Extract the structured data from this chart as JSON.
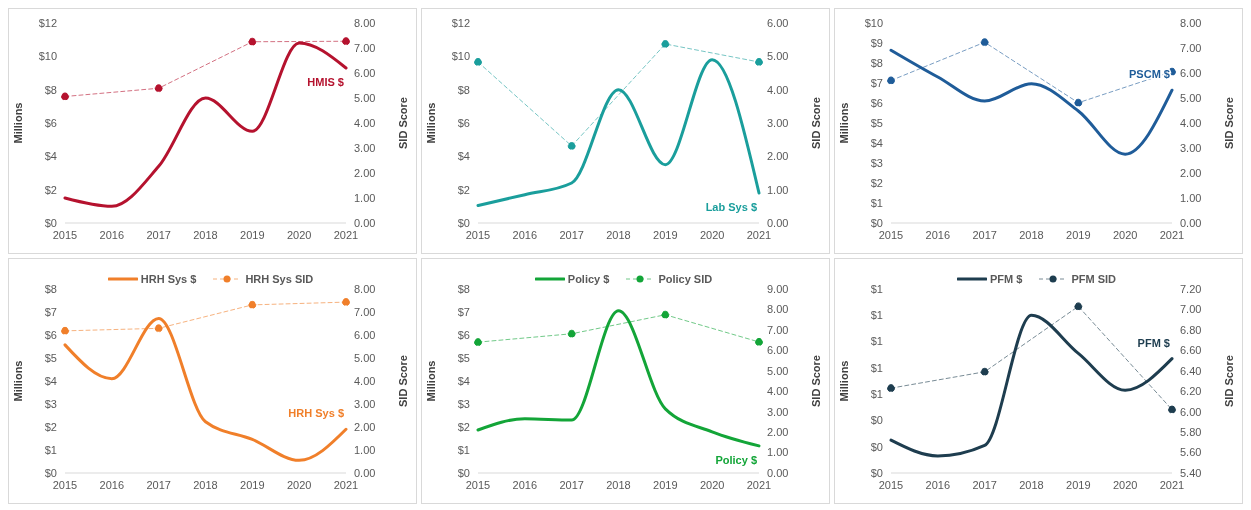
{
  "chart_data": [
    {
      "type": "line",
      "categories": [
        "2015",
        "2016",
        "2017",
        "2018",
        "2019",
        "2020",
        "2021"
      ],
      "ylabel": "Millions",
      "y2label": "SID Score",
      "legend": false,
      "series": [
        {
          "color": "#b5122e",
          "values": [
            1.5,
            1.0,
            3.4,
            7.5,
            5.5,
            10.8,
            9.3
          ],
          "line_style": "solid",
          "marker": "none"
        },
        {
          "color": "#b5122e",
          "values": [
            5.06,
            null,
            5.39,
            null,
            7.25,
            null,
            7.27
          ],
          "axis": "y2",
          "line_style": "dashed",
          "marker": "circle"
        }
      ],
      "ylim": [
        0,
        12
      ],
      "yticks": [
        {
          "value": 0,
          "label": "$0"
        },
        {
          "value": 2,
          "label": "$2"
        },
        {
          "value": 4,
          "label": "$4"
        },
        {
          "value": 6,
          "label": "$6"
        },
        {
          "value": 8,
          "label": "$8"
        },
        {
          "value": 10,
          "label": "$10"
        },
        {
          "value": 12,
          "label": "$12"
        }
      ],
      "y2lim": [
        0,
        8
      ],
      "y2ticks": [
        {
          "value": 0,
          "label": "0.00"
        },
        {
          "value": 1,
          "label": "1.00"
        },
        {
          "value": 2,
          "label": "2.00"
        },
        {
          "value": 3,
          "label": "3.00"
        },
        {
          "value": 4,
          "label": "4.00"
        },
        {
          "value": 5,
          "label": "5.00"
        },
        {
          "value": 6,
          "label": "6.00"
        },
        {
          "value": 7,
          "label": "7.00"
        },
        {
          "value": 8,
          "label": "8.00"
        }
      ],
      "annotations": [
        {
          "text": "HMIS $",
          "x": "2021",
          "y": 9.3
        }
      ]
    },
    {
      "type": "line",
      "categories": [
        "2015",
        "2016",
        "2017",
        "2018",
        "2019",
        "2020",
        "2021"
      ],
      "ylabel": "Millions",
      "y2label": "SID Score",
      "legend": false,
      "series": [
        {
          "color": "#1a9e9c",
          "values": [
            1.05,
            1.7,
            2.4,
            8.0,
            3.5,
            9.8,
            1.8
          ],
          "line_style": "solid",
          "marker": "none"
        },
        {
          "color": "#1a9e9c",
          "values": [
            4.83,
            null,
            2.31,
            null,
            5.37,
            null,
            4.83
          ],
          "axis": "y2",
          "line_style": "dashed",
          "marker": "circle"
        }
      ],
      "ylim": [
        0,
        12
      ],
      "yticks": [
        {
          "value": 0,
          "label": "$0"
        },
        {
          "value": 2,
          "label": "$2"
        },
        {
          "value": 4,
          "label": "$4"
        },
        {
          "value": 6,
          "label": "$6"
        },
        {
          "value": 8,
          "label": "$8"
        },
        {
          "value": 10,
          "label": "$10"
        },
        {
          "value": 12,
          "label": "$12"
        }
      ],
      "y2lim": [
        0,
        6
      ],
      "y2ticks": [
        {
          "value": 0,
          "label": "0.00"
        },
        {
          "value": 1,
          "label": "1.00"
        },
        {
          "value": 2,
          "label": "2.00"
        },
        {
          "value": 3,
          "label": "3.00"
        },
        {
          "value": 4,
          "label": "4.00"
        },
        {
          "value": 5,
          "label": "5.00"
        },
        {
          "value": 6,
          "label": "6.00"
        }
      ],
      "annotations": [
        {
          "text": "Lab Sys $",
          "x": "2021",
          "y": 1.8
        }
      ]
    },
    {
      "type": "line",
      "categories": [
        "2015",
        "2016",
        "2017",
        "2018",
        "2019",
        "2020",
        "2021"
      ],
      "ylabel": "Millions",
      "y2label": "SID Score",
      "legend": false,
      "series": [
        {
          "color": "#1f5c99",
          "values": [
            8.64,
            7.3,
            6.1,
            6.96,
            5.6,
            3.44,
            6.64
          ],
          "line_style": "solid",
          "marker": "none"
        },
        {
          "color": "#1f5c99",
          "values": [
            5.7,
            null,
            7.23,
            null,
            4.81,
            null,
            6.05
          ],
          "axis": "y2",
          "line_style": "dashed",
          "marker": "circle"
        }
      ],
      "ylim": [
        0,
        10
      ],
      "yticks": [
        {
          "value": 0,
          "label": "$0"
        },
        {
          "value": 1,
          "label": "$1"
        },
        {
          "value": 2,
          "label": "$2"
        },
        {
          "value": 3,
          "label": "$3"
        },
        {
          "value": 4,
          "label": "$4"
        },
        {
          "value": 5,
          "label": "$5"
        },
        {
          "value": 6,
          "label": "$6"
        },
        {
          "value": 7,
          "label": "$7"
        },
        {
          "value": 8,
          "label": "$8"
        },
        {
          "value": 9,
          "label": "$9"
        },
        {
          "value": 10,
          "label": "$10"
        }
      ],
      "y2lim": [
        0,
        8
      ],
      "y2ticks": [
        {
          "value": 0,
          "label": "0.00"
        },
        {
          "value": 1,
          "label": "1.00"
        },
        {
          "value": 2,
          "label": "2.00"
        },
        {
          "value": 3,
          "label": "3.00"
        },
        {
          "value": 4,
          "label": "4.00"
        },
        {
          "value": 5,
          "label": "5.00"
        },
        {
          "value": 6,
          "label": "6.00"
        },
        {
          "value": 7,
          "label": "7.00"
        },
        {
          "value": 8,
          "label": "8.00"
        }
      ],
      "annotations": [
        {
          "text": "PSCM $",
          "x": "2021",
          "y": 6.64
        }
      ]
    },
    {
      "type": "line",
      "categories": [
        "2015",
        "2016",
        "2017",
        "2018",
        "2019",
        "2020",
        "2021"
      ],
      "ylabel": "Millions",
      "y2label": "SID Score",
      "legend": "top",
      "series": [
        {
          "name": "HRH Sys $",
          "color": "#f07f2a",
          "values": [
            5.57,
            4.1,
            6.72,
            2.23,
            1.46,
            0.55,
            1.9
          ],
          "line_style": "solid",
          "marker": "none"
        },
        {
          "name": "HRH Sys SID",
          "color": "#f07f2a",
          "values": [
            6.18,
            null,
            6.29,
            null,
            7.31,
            null,
            7.43
          ],
          "axis": "y2",
          "line_style": "dashed",
          "marker": "circle"
        }
      ],
      "ylim": [
        0,
        8
      ],
      "yticks": [
        {
          "value": 0,
          "label": "$0"
        },
        {
          "value": 1,
          "label": "$1"
        },
        {
          "value": 2,
          "label": "$2"
        },
        {
          "value": 3,
          "label": "$3"
        },
        {
          "value": 4,
          "label": "$4"
        },
        {
          "value": 5,
          "label": "$5"
        },
        {
          "value": 6,
          "label": "$6"
        },
        {
          "value": 7,
          "label": "$7"
        },
        {
          "value": 8,
          "label": "$8"
        }
      ],
      "y2lim": [
        0,
        8
      ],
      "y2ticks": [
        {
          "value": 0,
          "label": "0.00"
        },
        {
          "value": 1,
          "label": "1.00"
        },
        {
          "value": 2,
          "label": "2.00"
        },
        {
          "value": 3,
          "label": "3.00"
        },
        {
          "value": 4,
          "label": "4.00"
        },
        {
          "value": 5,
          "label": "5.00"
        },
        {
          "value": 6,
          "label": "6.00"
        },
        {
          "value": 7,
          "label": "7.00"
        },
        {
          "value": 8,
          "label": "8.00"
        }
      ],
      "annotations": [
        {
          "text": "HRH Sys $",
          "x": "2021",
          "y": 1.9
        }
      ]
    },
    {
      "type": "line",
      "categories": [
        "2015",
        "2016",
        "2017",
        "2018",
        "2019",
        "2020",
        "2021"
      ],
      "ylabel": "Millions",
      "y2label": "SID Score",
      "legend": "top",
      "series": [
        {
          "name": "Policy $",
          "color": "#13a538",
          "values": [
            1.87,
            2.36,
            2.3,
            7.05,
            2.79,
            1.79,
            1.18
          ],
          "line_style": "solid",
          "marker": "none"
        },
        {
          "name": "Policy SID",
          "color": "#13a538",
          "values": [
            6.4,
            null,
            6.81,
            null,
            7.74,
            null,
            6.41
          ],
          "axis": "y2",
          "line_style": "dashed",
          "marker": "circle"
        }
      ],
      "ylim": [
        0,
        8
      ],
      "yticks": [
        {
          "value": 0,
          "label": "$0"
        },
        {
          "value": 1,
          "label": "$1"
        },
        {
          "value": 2,
          "label": "$2"
        },
        {
          "value": 3,
          "label": "$3"
        },
        {
          "value": 4,
          "label": "$4"
        },
        {
          "value": 5,
          "label": "$5"
        },
        {
          "value": 6,
          "label": "$6"
        },
        {
          "value": 7,
          "label": "$7"
        },
        {
          "value": 8,
          "label": "$8"
        }
      ],
      "y2lim": [
        0,
        9
      ],
      "y2ticks": [
        {
          "value": 0,
          "label": "0.00"
        },
        {
          "value": 1,
          "label": "1.00"
        },
        {
          "value": 2,
          "label": "2.00"
        },
        {
          "value": 3,
          "label": "3.00"
        },
        {
          "value": 4,
          "label": "4.00"
        },
        {
          "value": 5,
          "label": "5.00"
        },
        {
          "value": 6,
          "label": "6.00"
        },
        {
          "value": 7,
          "label": "7.00"
        },
        {
          "value": 8,
          "label": "8.00"
        },
        {
          "value": 9,
          "label": "9.00"
        }
      ],
      "annotations": [
        {
          "text": "Policy $",
          "x": "2021",
          "y": 1.18
        }
      ]
    },
    {
      "type": "line",
      "categories": [
        "2015",
        "2016",
        "2017",
        "2018",
        "2019",
        "2020",
        "2021"
      ],
      "ylabel": "Millions",
      "y2label": "SID Score",
      "legend": "top",
      "series": [
        {
          "name": "PFM $",
          "color": "#1e3d4f",
          "values": [
            0.25,
            0.13,
            0.21,
            1.2,
            0.91,
            0.63,
            0.87
          ],
          "line_style": "solid",
          "marker": "none"
        },
        {
          "name": "PFM SID",
          "color": "#1e3d4f",
          "values": [
            6.23,
            null,
            6.39,
            null,
            7.03,
            null,
            6.02
          ],
          "axis": "y2",
          "line_style": "dashed",
          "marker": "circle"
        }
      ],
      "ylim": [
        0,
        1.4
      ],
      "yticks": [
        {
          "value": 0,
          "label": "$0"
        },
        {
          "value": 0.2,
          "label": "$0"
        },
        {
          "value": 0.4,
          "label": "$0"
        },
        {
          "value": 0.6,
          "label": "$1"
        },
        {
          "value": 0.8,
          "label": "$1"
        },
        {
          "value": 1.0,
          "label": "$1"
        },
        {
          "value": 1.2,
          "label": "$1"
        },
        {
          "value": 1.4,
          "label": "$1"
        }
      ],
      "y2lim": [
        5.4,
        7.2
      ],
      "y2ticks": [
        {
          "value": 5.4,
          "label": "5.40"
        },
        {
          "value": 5.6,
          "label": "5.60"
        },
        {
          "value": 5.8,
          "label": "5.80"
        },
        {
          "value": 6.0,
          "label": "6.00"
        },
        {
          "value": 6.2,
          "label": "6.20"
        },
        {
          "value": 6.4,
          "label": "6.40"
        },
        {
          "value": 6.6,
          "label": "6.60"
        },
        {
          "value": 6.8,
          "label": "6.80"
        },
        {
          "value": 7.0,
          "label": "7.00"
        },
        {
          "value": 7.2,
          "label": "7.20"
        }
      ],
      "annotations": [
        {
          "text": "PFM $",
          "x": "2021",
          "y": 0.87
        }
      ]
    }
  ]
}
